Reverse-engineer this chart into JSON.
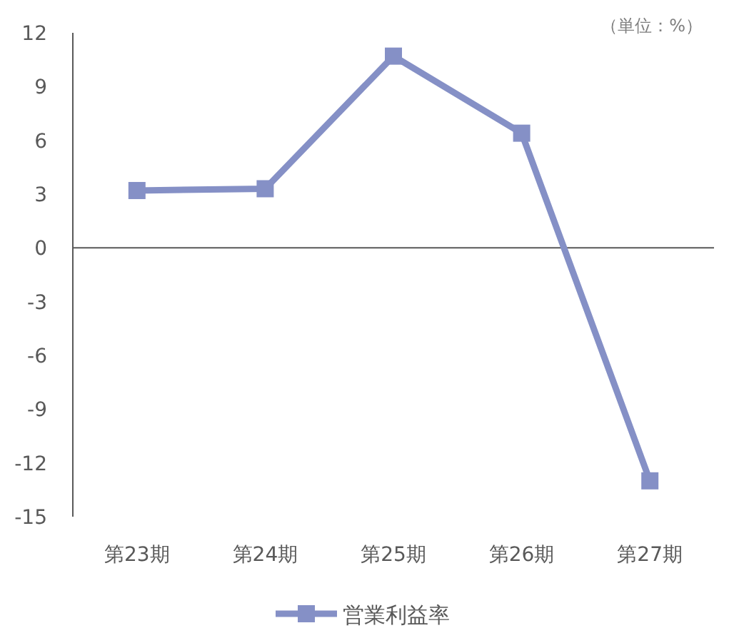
{
  "chart_data": {
    "type": "line",
    "categories": [
      "第23期",
      "第24期",
      "第25期",
      "第26期",
      "第27期"
    ],
    "series": [
      {
        "name": "営業利益率",
        "color": "#8590c6",
        "values": [
          3.2,
          3.3,
          10.7,
          6.4,
          -13.0
        ]
      }
    ],
    "ylim": [
      -15,
      12
    ],
    "yticks": [
      -15,
      -12,
      -9,
      -6,
      -3,
      0,
      3,
      6,
      9,
      12
    ],
    "annotations": [
      "（単位：%）"
    ],
    "legend": "bottom",
    "marker": "square"
  }
}
